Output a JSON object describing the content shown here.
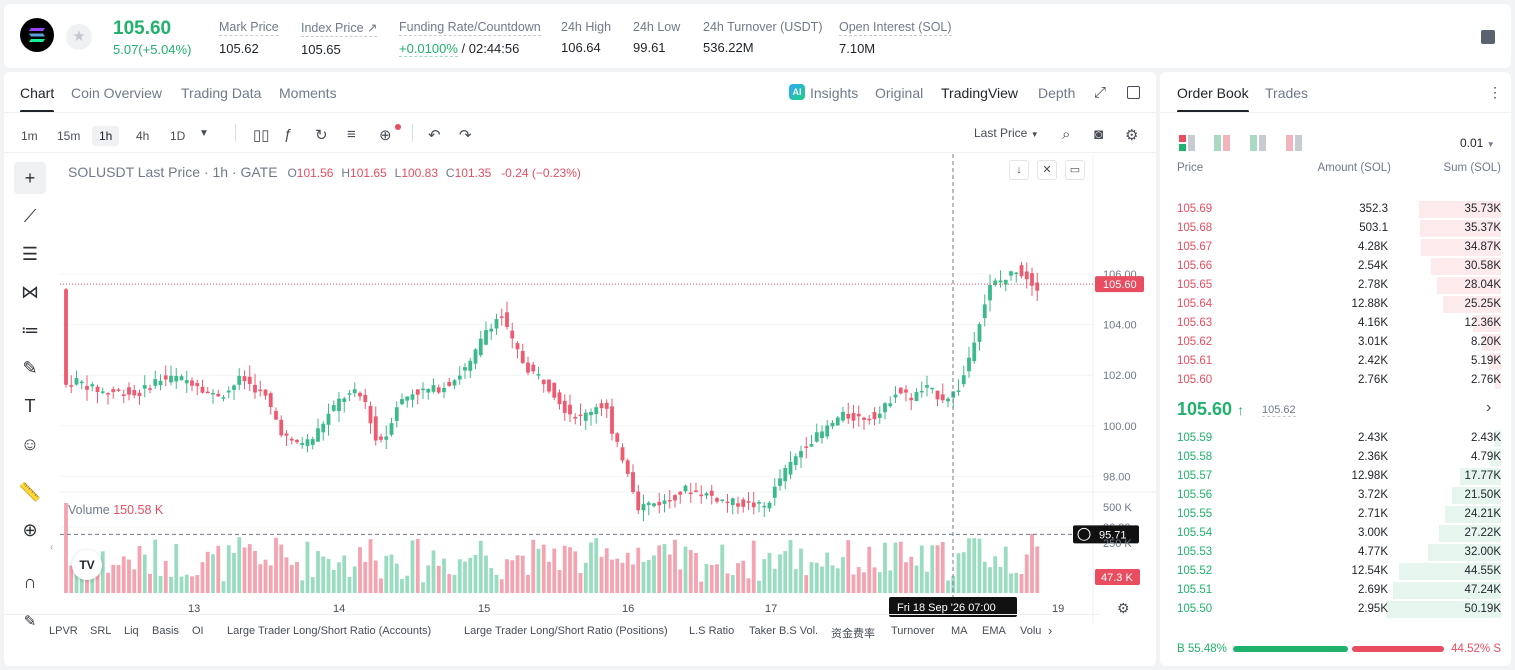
{
  "header": {
    "last_price": "105.60",
    "change": "5.07(+5.04%)",
    "stats": [
      {
        "label": "Mark Price",
        "value": "105.62"
      },
      {
        "label": "Index Price ↗",
        "value": "105.65"
      },
      {
        "label": "Funding Rate/Countdown",
        "value_green": "+0.0100%",
        "value": " / 02:44:56"
      },
      {
        "label": "24h High",
        "value": "106.64"
      },
      {
        "label": "24h Low",
        "value": "99.61"
      },
      {
        "label": "24h Turnover (USDT)",
        "value": "536.22M"
      },
      {
        "label": "Open Interest (SOL)",
        "value": "7.10M"
      }
    ]
  },
  "chart_tabs": [
    "Chart",
    "Coin Overview",
    "Trading Data",
    "Moments"
  ],
  "view_tabs": {
    "insights": "Insights",
    "ai_badge": "AI",
    "original": "Original",
    "tradingview": "TradingView",
    "depth": "Depth"
  },
  "intervals": [
    "1m",
    "15m",
    "1h",
    "4h",
    "1D"
  ],
  "price_type": "Last Price",
  "legend": {
    "symbol": "SOLUSDT Last Price · 1h · GATE",
    "o_label": "O",
    "o": "101.56",
    "h_label": "H",
    "h": "101.65",
    "l_label": "L",
    "l": "100.83",
    "c_label": "C",
    "c": "101.35",
    "chg": "-0.24 (−0.23%)"
  },
  "volume_legend": {
    "label": "Volume",
    "value": "150.58 K"
  },
  "price_axis": {
    "ticks": [
      "106.00",
      "104.00",
      "102.00",
      "100.00",
      "98.00",
      "96.00"
    ],
    "last_tag": "105.60",
    "cross_tag": "95.71"
  },
  "volume_axis": {
    "ticks": [
      "500 K",
      "250 K"
    ],
    "last_tag": "47.3 K"
  },
  "time_axis": {
    "ticks": [
      "13",
      "14",
      "15",
      "16",
      "17",
      "19"
    ],
    "cross_label": "Fri 18 Sep '26   07:00"
  },
  "indicators": [
    "LPVR",
    "SRL",
    "Liq",
    "Basis",
    "OI",
    "Large Trader Long/Short Ratio (Accounts)",
    "Large Trader Long/Short Ratio (Positions)",
    "L.S Ratio",
    "Taker B.S Vol.",
    "资金费率",
    "Turnover",
    "MA",
    "EMA",
    "Volu"
  ],
  "colors": {
    "up": "#20b26c",
    "down": "#e84d60",
    "up_candle": "#3dba8c",
    "down_candle": "#ee5a6f"
  },
  "orderbook": {
    "tabs": [
      "Order Book",
      "Trades"
    ],
    "precision": "0.01",
    "headers": {
      "price": "Price",
      "amount": "Amount (SOL)",
      "sum": "Sum (SOL)"
    },
    "asks": [
      {
        "price": "105.69",
        "amount": "352.3",
        "sum": "35.73K",
        "depth": 0.713
      },
      {
        "price": "105.68",
        "amount": "503.1",
        "sum": "35.37K",
        "depth": 0.706
      },
      {
        "price": "105.67",
        "amount": "4.28K",
        "sum": "34.87K",
        "depth": 0.696
      },
      {
        "price": "105.66",
        "amount": "2.54K",
        "sum": "30.58K",
        "depth": 0.61
      },
      {
        "price": "105.65",
        "amount": "2.78K",
        "sum": "28.04K",
        "depth": 0.56
      },
      {
        "price": "105.64",
        "amount": "12.88K",
        "sum": "25.25K",
        "depth": 0.504
      },
      {
        "price": "105.63",
        "amount": "4.16K",
        "sum": "12.36K",
        "depth": 0.247
      },
      {
        "price": "105.62",
        "amount": "3.01K",
        "sum": "8.20K",
        "depth": 0.164
      },
      {
        "price": "105.61",
        "amount": "2.42K",
        "sum": "5.19K",
        "depth": 0.104
      },
      {
        "price": "105.60",
        "amount": "2.76K",
        "sum": "2.76K",
        "depth": 0.055
      }
    ],
    "mid": {
      "price": "105.60",
      "arrow": "↑",
      "mark": "105.62"
    },
    "bids": [
      {
        "price": "105.59",
        "amount": "2.43K",
        "sum": "2.43K",
        "depth": 0.048
      },
      {
        "price": "105.58",
        "amount": "2.36K",
        "sum": "4.79K",
        "depth": 0.096
      },
      {
        "price": "105.57",
        "amount": "12.98K",
        "sum": "17.77K",
        "depth": 0.355
      },
      {
        "price": "105.56",
        "amount": "3.72K",
        "sum": "21.50K",
        "depth": 0.429
      },
      {
        "price": "105.55",
        "amount": "2.71K",
        "sum": "24.21K",
        "depth": 0.483
      },
      {
        "price": "105.54",
        "amount": "3.00K",
        "sum": "27.22K",
        "depth": 0.543
      },
      {
        "price": "105.53",
        "amount": "4.77K",
        "sum": "32.00K",
        "depth": 0.639
      },
      {
        "price": "105.52",
        "amount": "12.54K",
        "sum": "44.55K",
        "depth": 0.889
      },
      {
        "price": "105.51",
        "amount": "2.69K",
        "sum": "47.24K",
        "depth": 0.943
      },
      {
        "price": "105.50",
        "amount": "2.95K",
        "sum": "50.19K",
        "depth": 1.0
      }
    ],
    "ratio": {
      "buy_label": "B",
      "buy": "55.48%",
      "sell": "44.52%",
      "sell_label": "S",
      "buy_frac": 0.5548
    }
  }
}
